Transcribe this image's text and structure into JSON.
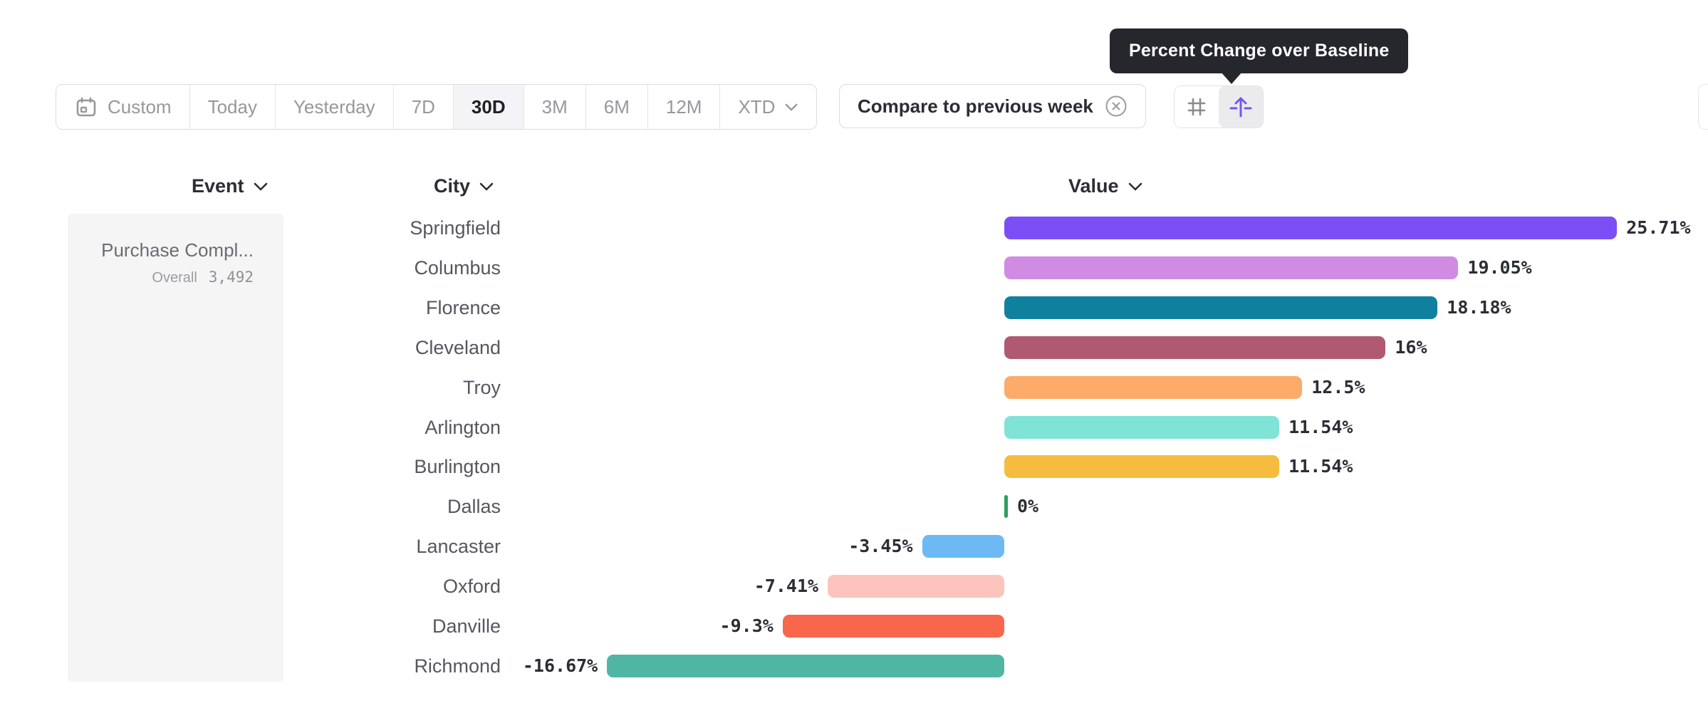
{
  "tooltip": {
    "text": "Percent Change over Baseline",
    "bg": "#26272c"
  },
  "toolbar": {
    "date_ranges": [
      {
        "label": "Custom",
        "icon": "calendar-icon",
        "active": false
      },
      {
        "label": "Today",
        "active": false
      },
      {
        "label": "Yesterday",
        "active": false
      },
      {
        "label": "7D",
        "active": false
      },
      {
        "label": "30D",
        "active": true
      },
      {
        "label": "3M",
        "active": false
      },
      {
        "label": "6M",
        "active": false
      },
      {
        "label": "12M",
        "active": false
      },
      {
        "label": "XTD",
        "active": false,
        "chevron": true
      }
    ],
    "compare": {
      "label": "Compare to previous week",
      "close_icon": "x-circle-icon"
    },
    "view_toggles": [
      {
        "icon": "hash-grid-icon",
        "active": false
      },
      {
        "icon": "baseline-arrow-icon",
        "active": true,
        "color": "#7357f0"
      }
    ]
  },
  "columns": {
    "event": "Event",
    "city": "City",
    "value": "Value"
  },
  "event_panel": {
    "event_name": "Purchase Compl...",
    "overall_label": "Overall",
    "overall_value": "3,492"
  },
  "chart_data": {
    "type": "bar",
    "orientation": "horizontal",
    "title": "Percent Change over Baseline",
    "unit": "%",
    "categories": [
      "Springfield",
      "Columbus",
      "Florence",
      "Cleveland",
      "Troy",
      "Arlington",
      "Burlington",
      "Dallas",
      "Lancaster",
      "Oxford",
      "Danville",
      "Richmond"
    ],
    "values": [
      25.71,
      19.05,
      18.18,
      16,
      12.5,
      11.54,
      11.54,
      0,
      -3.45,
      -7.41,
      -9.3,
      -16.67
    ],
    "labels": [
      "25.71%",
      "19.05%",
      "18.18%",
      "16%",
      "12.5%",
      "11.54%",
      "11.54%",
      "0%",
      "-3.45%",
      "-7.41%",
      "-9.3%",
      "-16.67%"
    ],
    "colors": [
      "#7b4ff5",
      "#d08ce2",
      "#10809f",
      "#b05a72",
      "#fcab6b",
      "#7fe3d6",
      "#f6bc3f",
      "#2aa05e",
      "#6cb9f4",
      "#fcc4bc",
      "#f8674b",
      "#4fb6a4"
    ],
    "xlim": [
      -16.67,
      25.71
    ],
    "grid": false,
    "legend": false
  }
}
